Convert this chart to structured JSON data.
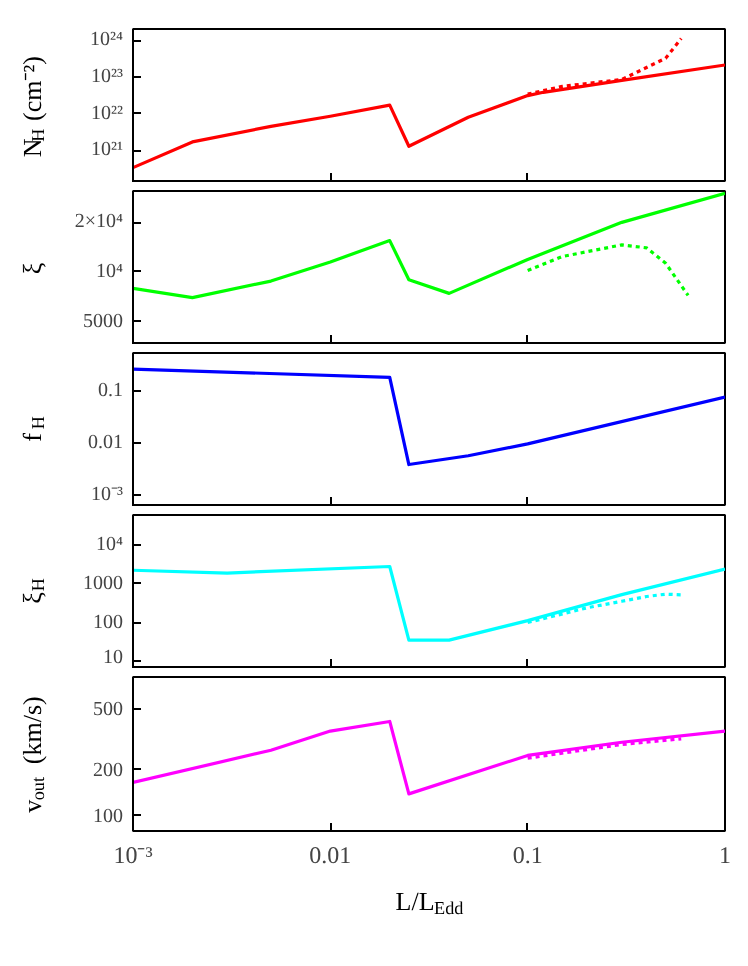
{
  "chart_data": [
    {
      "type": "line",
      "ylabel": "N$_{H}$ (cm⁻²)",
      "log": "xy",
      "xlim": [
        0.001,
        1
      ],
      "xticks": [
        {
          "value": 0.01,
          "label": null
        },
        {
          "value": 0.1,
          "label": null
        }
      ],
      "ylim": [
        1.3e+20,
        2e+24
      ],
      "yticks": [
        {
          "value": 1e+21,
          "label": "10²¹"
        },
        {
          "value": 1e+22,
          "label": "10²²"
        },
        {
          "value": 1e+23,
          "label": "10²³"
        },
        {
          "value": 1e+24,
          "label": "10²⁴"
        }
      ],
      "tick_labels": "y",
      "series": [
        {
          "color": "#ff0000",
          "line_style": "solid",
          "x": [
            0.001,
            0.002,
            0.005,
            0.01,
            0.02,
            0.025,
            0.05,
            0.1,
            0.12,
            0.3,
            1
          ],
          "values": [
            3.4e+20,
            1.7e+21,
            4.5e+21,
            8.5e+21,
            1.7e+22,
            1.3e+21,
            8e+21,
            3.1e+22,
            3.8e+22,
            8e+22,
            2.1e+23
          ]
        },
        {
          "color": "#ff0000",
          "line_style": "dotted",
          "x": [
            0.1,
            0.15,
            0.3,
            0.5,
            0.6
          ],
          "values": [
            3.4e+22,
            5.5e+22,
            8.5e+22,
            3.2e+23,
            1.1e+24
          ]
        }
      ]
    },
    {
      "type": "line",
      "ylabel": "ξ",
      "log": "xy",
      "xlim": [
        0.001,
        1
      ],
      "xticks": [
        {
          "value": 0.01,
          "label": null
        },
        {
          "value": 0.1,
          "label": null
        }
      ],
      "ylim": [
        3600,
        31000
      ],
      "yticks": [
        5000,
        {
          "value": 10000,
          "label": "10⁴"
        },
        {
          "value": 20000,
          "label": "2×10⁴"
        }
      ],
      "tick_labels": "y",
      "series": [
        {
          "color": "#00ff00",
          "line_style": "solid",
          "x": [
            0.001,
            0.002,
            0.005,
            0.01,
            0.02,
            0.025,
            0.04,
            0.1,
            0.3,
            1
          ],
          "values": [
            7950,
            6980,
            8800,
            11500,
            15500,
            8960,
            7410,
            11900,
            20000,
            30000
          ]
        },
        {
          "color": "#00ff00",
          "line_style": "dotted",
          "x": [
            0.1,
            0.15,
            0.3,
            0.4,
            0.5,
            0.65
          ],
          "values": [
            10200,
            12400,
            14600,
            14000,
            11300,
            7200
          ]
        }
      ]
    },
    {
      "type": "line",
      "ylabel": "f$_{H}$",
      "log": "xy",
      "xlim": [
        0.001,
        1
      ],
      "xticks": [
        {
          "value": 0.01,
          "label": null
        },
        {
          "value": 0.1,
          "label": null
        }
      ],
      "ylim": [
        0.00058,
        0.53
      ],
      "yticks": [
        {
          "value": 0.001,
          "label": "10⁻³"
        },
        0.01,
        0.1
      ],
      "tick_labels": "y",
      "series": [
        {
          "color": "#0000ff",
          "line_style": "solid",
          "x": [
            0.001,
            0.02,
            0.025,
            0.05,
            0.1,
            1
          ],
          "values": [
            0.26,
            0.18,
            0.0038,
            0.0056,
            0.0095,
            0.075
          ]
        }
      ]
    },
    {
      "type": "line",
      "ylabel": "ξ$_{H}$",
      "log": "xy",
      "xlim": [
        0.001,
        1
      ],
      "xticks": [
        {
          "value": 0.01,
          "label": null
        },
        {
          "value": 0.1,
          "label": null
        }
      ],
      "ylim": [
        6.3,
        60000
      ],
      "yticks": [
        10,
        100,
        1000,
        {
          "value": 10000,
          "label": "10⁴"
        }
      ],
      "tick_labels": "y",
      "series": [
        {
          "color": "#00ffff",
          "line_style": "solid",
          "x": [
            0.001,
            0.003,
            0.02,
            0.025,
            0.04,
            0.1,
            0.3,
            1
          ],
          "values": [
            2240,
            1900,
            2800,
            35,
            35,
            112,
            525,
            2400
          ]
        },
        {
          "color": "#00ffff",
          "line_style": "dotted",
          "x": [
            0.1,
            0.2,
            0.3,
            0.4,
            0.5,
            0.6
          ],
          "values": [
            100,
            240,
            355,
            470,
            540,
            520
          ]
        }
      ]
    },
    {
      "type": "line",
      "xlabel": "L/L$_{Edd}$",
      "ylabel": "v$_{out}$ (km/s)",
      "log": "xy",
      "xlim": [
        0.001,
        1
      ],
      "xticks": [
        {
          "value": 0.001,
          "label": "10⁻³"
        },
        0.01,
        0.1,
        1
      ],
      "ylim": [
        79,
        800
      ],
      "yticks": [
        100,
        200,
        500
      ],
      "series": [
        {
          "color": "#ff00ff",
          "line_style": "solid",
          "x": [
            0.001,
            0.005,
            0.01,
            0.02,
            0.025,
            0.1,
            0.3,
            1
          ],
          "values": [
            164,
            266,
            355,
            410,
            138,
            246,
            300,
            355
          ]
        },
        {
          "color": "#ff00ff",
          "line_style": "dotted",
          "x": [
            0.1,
            0.3,
            0.6
          ],
          "values": [
            236,
            290,
            316
          ]
        }
      ]
    }
  ]
}
